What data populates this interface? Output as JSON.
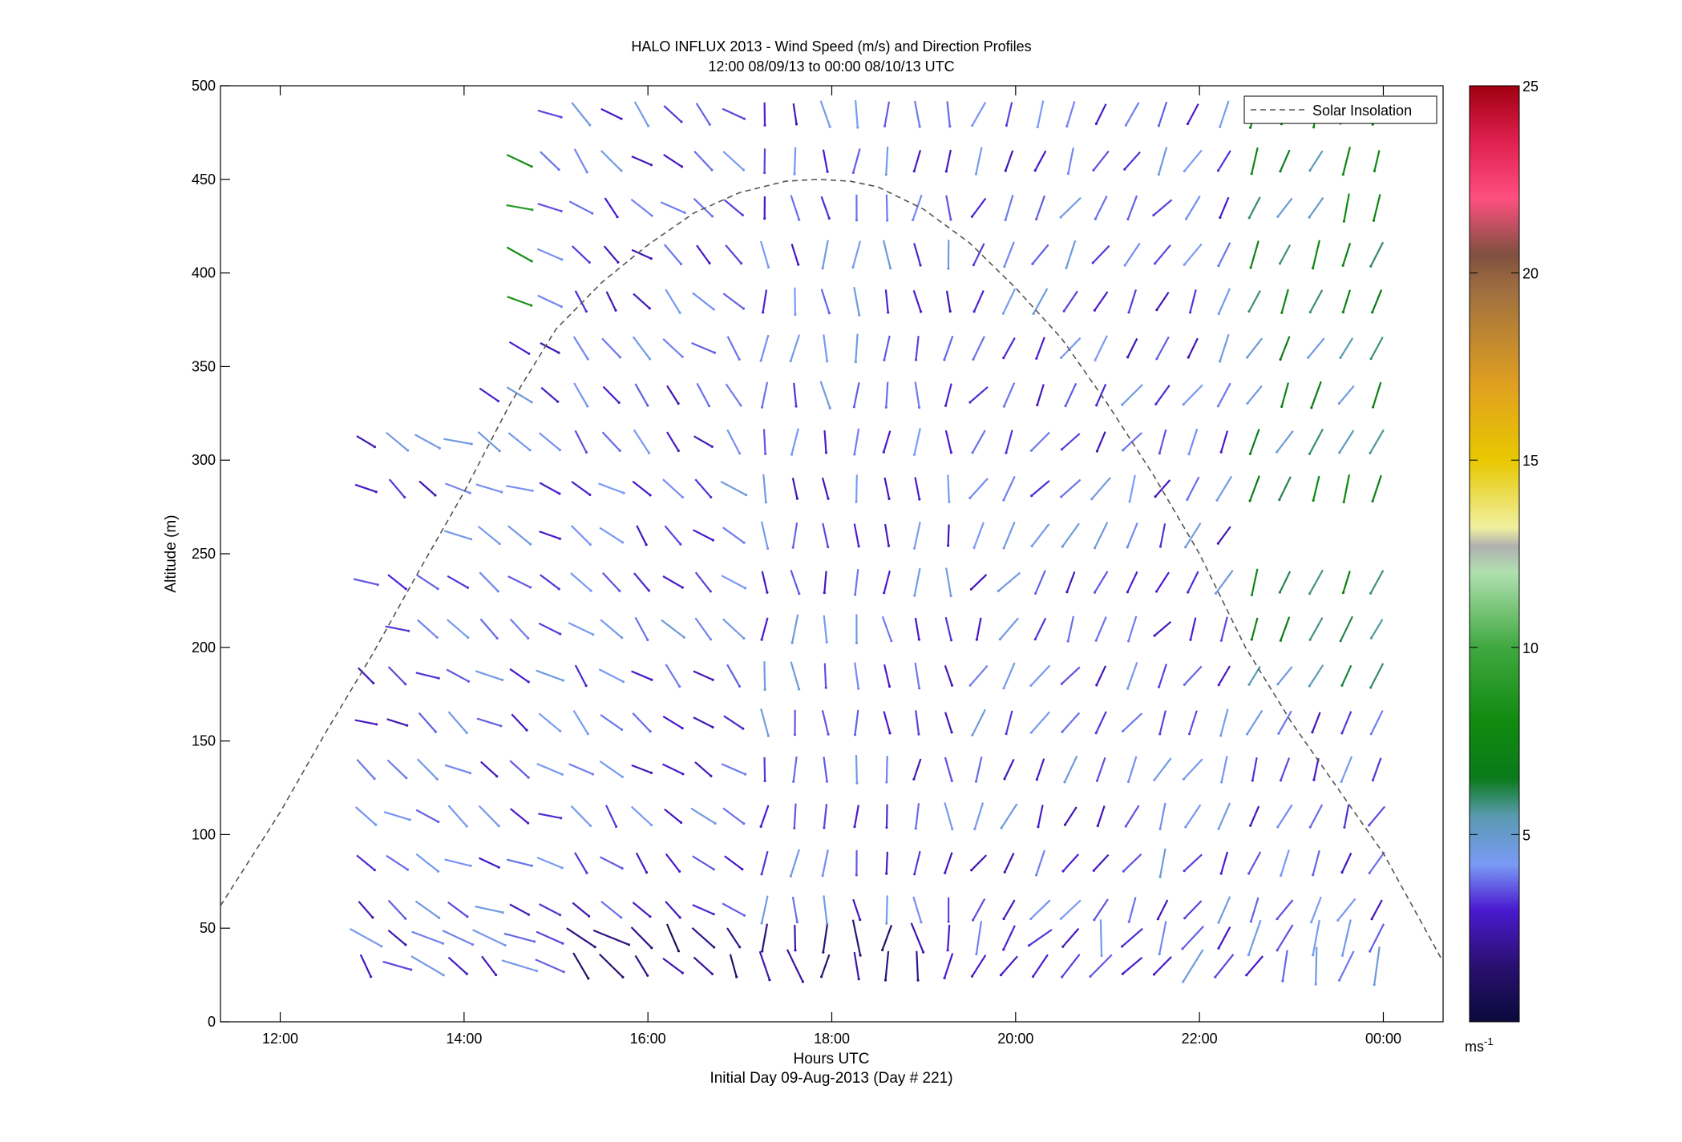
{
  "chart_data": {
    "type": "scatter",
    "title": "HALO INFLUX 2013 - Wind Speed (m/s) and Direction Profiles",
    "subtitle": "12:00 08/09/13 to 00:00 08/10/13  UTC",
    "xlabel": "Hours UTC",
    "xlabel2": "Initial Day 09-Aug-2013 (Day # 221)",
    "ylabel": "Altitude (m)",
    "x_ticks": [
      {
        "hour": 12,
        "label": "12:00"
      },
      {
        "hour": 14,
        "label": "14:00"
      },
      {
        "hour": 16,
        "label": "16:00"
      },
      {
        "hour": 18,
        "label": "18:00"
      },
      {
        "hour": 20,
        "label": "20:00"
      },
      {
        "hour": 22,
        "label": "22:00"
      },
      {
        "hour": 24,
        "label": "00:00"
      }
    ],
    "xlim": [
      11.35,
      24.65
    ],
    "y_ticks": [
      {
        "value": 0,
        "label": "0"
      },
      {
        "value": 50,
        "label": "50"
      },
      {
        "value": 100,
        "label": "100"
      },
      {
        "value": 150,
        "label": "150"
      },
      {
        "value": 200,
        "label": "200"
      },
      {
        "value": 250,
        "label": "250"
      },
      {
        "value": 300,
        "label": "300"
      },
      {
        "value": 350,
        "label": "350"
      },
      {
        "value": 400,
        "label": "400"
      },
      {
        "value": 450,
        "label": "450"
      },
      {
        "value": 500,
        "label": "500"
      }
    ],
    "ylim": [
      0,
      500
    ],
    "times": [
      12.93,
      13.27,
      13.6,
      13.93,
      14.27,
      14.6,
      14.93,
      15.27,
      15.6,
      15.93,
      16.27,
      16.6,
      16.93,
      17.27,
      17.6,
      17.93,
      18.27,
      18.6,
      18.93,
      19.27,
      19.6,
      19.93,
      20.27,
      20.6,
      20.93,
      21.27,
      21.6,
      21.93,
      22.27,
      22.6,
      22.93,
      23.27,
      23.6,
      23.93
    ],
    "altitudes": [
      30,
      45,
      60,
      85,
      110,
      135,
      160,
      185,
      210,
      235,
      260,
      285,
      310,
      335,
      360,
      385,
      410,
      435,
      460,
      485
    ],
    "rows": [
      {
        "altitude": 30,
        "start": 0,
        "end": 33
      },
      {
        "altitude": 45,
        "start": 0,
        "end": 33
      },
      {
        "altitude": 60,
        "start": 0,
        "end": 33
      },
      {
        "altitude": 85,
        "start": 0,
        "end": 33
      },
      {
        "altitude": 110,
        "start": 0,
        "end": 33
      },
      {
        "altitude": 135,
        "start": 0,
        "end": 33
      },
      {
        "altitude": 160,
        "start": 0,
        "end": 33
      },
      {
        "altitude": 185,
        "start": 0,
        "end": 33
      },
      {
        "altitude": 210,
        "start": 1,
        "end": 33
      },
      {
        "altitude": 235,
        "start": 0,
        "end": 33
      },
      {
        "altitude": 260,
        "start": 3,
        "end": 28
      },
      {
        "altitude": 285,
        "start": 0,
        "end": 33
      },
      {
        "altitude": 310,
        "start": 0,
        "end": 33
      },
      {
        "altitude": 335,
        "start": 4,
        "end": 33
      },
      {
        "altitude": 360,
        "start": 5,
        "end": 33
      },
      {
        "altitude": 385,
        "start": 5,
        "end": 33
      },
      {
        "altitude": 410,
        "start": 5,
        "end": 33
      },
      {
        "altitude": 435,
        "start": 5,
        "end": 33
      },
      {
        "altitude": 460,
        "start": 5,
        "end": 33
      },
      {
        "altitude": 485,
        "start": 6,
        "end": 33
      }
    ],
    "series": [
      {
        "name": "Solar Insolation",
        "style": "dashed",
        "color": "#555555",
        "x": [
          11.35,
          12.0,
          12.5,
          13.0,
          13.5,
          14.0,
          14.5,
          15.0,
          15.5,
          16.0,
          16.5,
          17.0,
          17.5,
          17.85,
          18.2,
          18.5,
          19.0,
          19.5,
          20.0,
          20.5,
          21.0,
          21.5,
          22.0,
          22.5,
          23.0,
          23.5,
          24.0,
          24.65
        ],
        "y": [
          62,
          112,
          155,
          196,
          240,
          283,
          330,
          370,
          395,
          415,
          432,
          443,
          449,
          450,
          449,
          446,
          434,
          416,
          392,
          365,
          330,
          292,
          250,
          200,
          160,
          125,
          90,
          32
        ]
      }
    ],
    "legend": {
      "entries": [
        "Solar Insolation"
      ],
      "placement": "top-right"
    },
    "colorbar": {
      "unit_label": "ms",
      "unit_exponent": "-1",
      "range": [
        0,
        25
      ],
      "ticks": [
        {
          "value": 5,
          "label": "5"
        },
        {
          "value": 10,
          "label": "10"
        },
        {
          "value": 15,
          "label": "15"
        },
        {
          "value": 20,
          "label": "20"
        },
        {
          "value": 25,
          "label": "25"
        }
      ],
      "stops": [
        {
          "v": 0,
          "c": "#0a0a3a"
        },
        {
          "v": 1.5,
          "c": "#2a1070"
        },
        {
          "v": 3,
          "c": "#4a1ad0"
        },
        {
          "v": 4.2,
          "c": "#7a9af5"
        },
        {
          "v": 5.5,
          "c": "#5a9ab0"
        },
        {
          "v": 6.5,
          "c": "#0a7a1a"
        },
        {
          "v": 8,
          "c": "#108a10"
        },
        {
          "v": 10,
          "c": "#40a840"
        },
        {
          "v": 12,
          "c": "#b0e0b0"
        },
        {
          "v": 12.7,
          "c": "#b0b0b0"
        },
        {
          "v": 13.2,
          "c": "#f0f0a0"
        },
        {
          "v": 15,
          "c": "#e8c800"
        },
        {
          "v": 17,
          "c": "#e0a020"
        },
        {
          "v": 19.5,
          "c": "#a07040"
        },
        {
          "v": 20.5,
          "c": "#805040"
        },
        {
          "v": 22,
          "c": "#ff5080"
        },
        {
          "v": 23.5,
          "c": "#e02050"
        },
        {
          "v": 25,
          "c": "#a00010"
        }
      ]
    },
    "grid": false
  }
}
